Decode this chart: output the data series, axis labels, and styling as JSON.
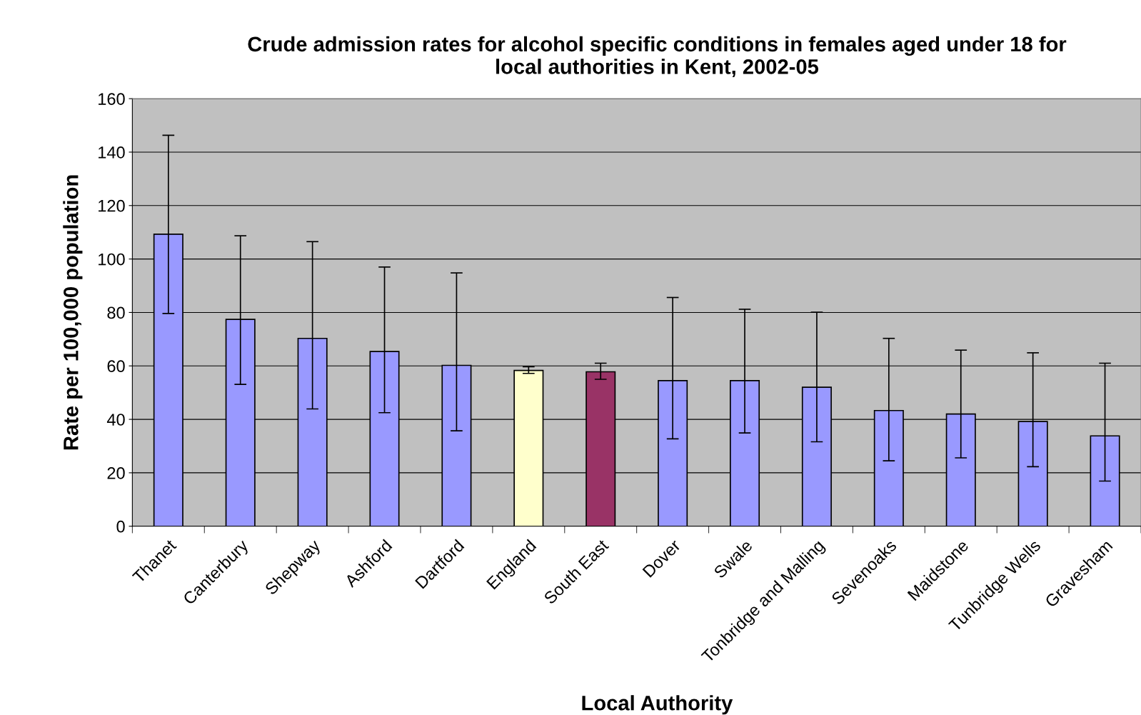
{
  "chart_data": {
    "type": "bar",
    "title": "Crude admission rates for alcohol specific conditions in females aged under 18 for\nlocal authorities in Kent, 2002-05",
    "xlabel": "Local Authority",
    "ylabel": "Rate per 100,000 population",
    "categories": [
      "Thanet",
      "Canterbury",
      "Shepway",
      "Ashford",
      "Dartford",
      "England",
      "South East",
      "Dover",
      "Swale",
      "Tonbridge and Malling",
      "Sevenoaks",
      "Maidstone",
      "Tunbridge Wells",
      "Gravesham"
    ],
    "values": [
      109.3,
      77.4,
      70.3,
      65.4,
      60.2,
      58.3,
      57.8,
      54.5,
      54.5,
      52.0,
      43.3,
      42.0,
      39.2,
      33.8
    ],
    "errors": [
      [
        79.6,
        146.3
      ],
      [
        53.1,
        108.7
      ],
      [
        43.9,
        106.5
      ],
      [
        42.5,
        97.0
      ],
      [
        35.7,
        94.8
      ],
      [
        57.2,
        59.7
      ],
      [
        55.0,
        61.0
      ],
      [
        32.7,
        85.6
      ],
      [
        34.9,
        81.2
      ],
      [
        31.6,
        80.1
      ],
      [
        24.5,
        70.3
      ],
      [
        25.6,
        65.9
      ],
      [
        22.3,
        64.9
      ],
      [
        16.9,
        61.0
      ]
    ],
    "colors": [
      "#9999ff",
      "#9999ff",
      "#9999ff",
      "#9999ff",
      "#9999ff",
      "#ffffcc",
      "#993366",
      "#9999ff",
      "#9999ff",
      "#9999ff",
      "#9999ff",
      "#9999ff",
      "#9999ff",
      "#9999ff"
    ],
    "ylim": [
      0,
      160
    ],
    "yticks": [
      0,
      20,
      40,
      60,
      80,
      100,
      120,
      140,
      160
    ],
    "grid": "y",
    "legend": false
  }
}
